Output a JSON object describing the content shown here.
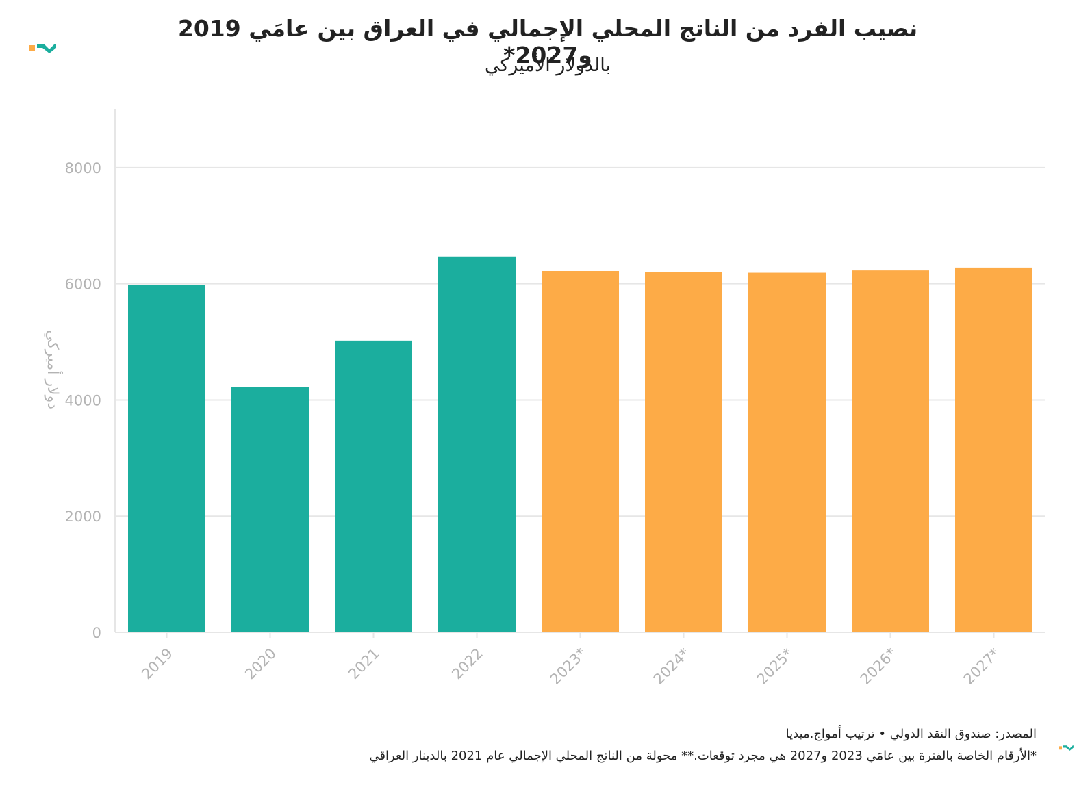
{
  "header": {
    "title": "نصيب الفرد من الناتج المحلي الإجمالي في العراق بين عامَي 2019 و2027*",
    "subtitle": "بالدولار الأميركي"
  },
  "footer": {
    "source": "المصدر: صندوق النقد الدولي • ترتيب أمواج.ميديا",
    "note": "*الأرقام الخاصة بالفترة بين عامَي 2023 و2027 هي مجرد توقعات.** محولة من الناتج المحلي الإجمالي عام 2021 بالدينار العراقي"
  },
  "colors": {
    "actual": "#1bae9e",
    "forecast": "#fdab47",
    "grid": "#e6e6e6",
    "axis_text": "#b3b3b3"
  },
  "chart_data": {
    "type": "bar",
    "title": "نصيب الفرد من الناتج المحلي الإجمالي في العراق بين عامَي 2019 و2027*",
    "subtitle": "بالدولار الأميركي",
    "xlabel": "",
    "ylabel": "دولار أميركي",
    "categories": [
      "2019",
      "2020",
      "2021",
      "2022",
      "2023*",
      "2024*",
      "2025*",
      "2026*",
      "2027*"
    ],
    "values": [
      5980,
      4220,
      5020,
      6470,
      6220,
      6200,
      6190,
      6230,
      6280
    ],
    "bar_kind": [
      "actual",
      "actual",
      "actual",
      "actual",
      "forecast",
      "forecast",
      "forecast",
      "forecast",
      "forecast"
    ],
    "ylim": [
      0,
      9000
    ],
    "yticks": [
      0,
      2000,
      4000,
      6000,
      8000
    ],
    "grid": true,
    "legend": "none"
  }
}
